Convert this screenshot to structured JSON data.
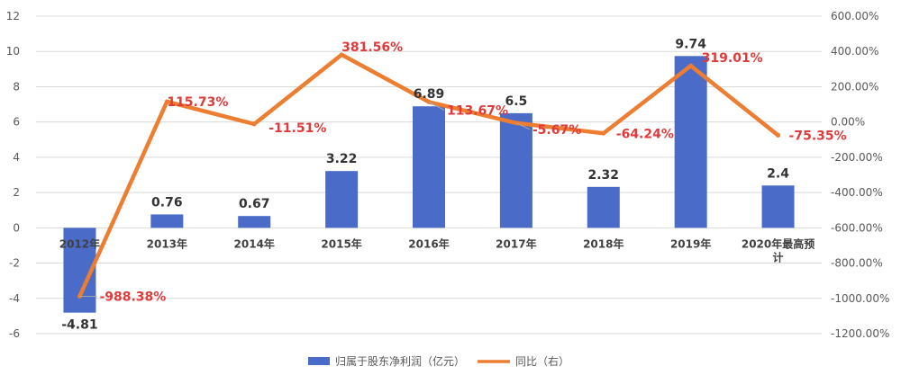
{
  "chart_data": {
    "type": "bar",
    "categories": [
      "2012年",
      "2013年",
      "2014年",
      "2015年",
      "2016年",
      "2017年",
      "2018年",
      "2019年",
      "2020年最高预计"
    ],
    "category_lines": [
      [
        "2012年"
      ],
      [
        "2013年"
      ],
      [
        "2014年"
      ],
      [
        "2015年"
      ],
      [
        "2016年"
      ],
      [
        "2017年"
      ],
      [
        "2018年"
      ],
      [
        "2019年"
      ],
      [
        "2020年最高预",
        "计"
      ]
    ],
    "series": [
      {
        "name": "归属于股东净利润（亿元）",
        "type": "bar",
        "axis": "left",
        "values": [
          -4.81,
          0.76,
          0.67,
          3.22,
          6.89,
          6.5,
          2.32,
          9.74,
          2.4
        ],
        "labels": [
          "-4.81",
          "0.76",
          "0.67",
          "3.22",
          "6.89",
          "6.5",
          "2.32",
          "9.74",
          "2.4"
        ]
      },
      {
        "name": "同比（右）",
        "type": "line",
        "axis": "right",
        "values": [
          -988.38,
          115.73,
          -11.51,
          381.56,
          113.67,
          -5.67,
          -64.24,
          319.01,
          -75.35
        ],
        "labels": [
          "-988.38%",
          "115.73%",
          "-11.51%",
          "381.56%",
          "113.67%",
          "-5.67%",
          "-64.24%",
          "319.01%",
          "-75.35%"
        ]
      }
    ],
    "y_left": {
      "min": -6,
      "max": 12,
      "ticks": [
        "-6",
        "-4",
        "-2",
        "0",
        "2",
        "4",
        "6",
        "8",
        "10",
        "12"
      ]
    },
    "y_right": {
      "min": -1200,
      "max": 600,
      "ticks": [
        "-1200.00%",
        "-1000.00%",
        "-800.00%",
        "-600.00%",
        "-400.00%",
        "-200.00%",
        "0.00%",
        "200.00%",
        "400.00%",
        "600.00%"
      ]
    },
    "grid": true,
    "legend_position": "bottom",
    "colors": {
      "bar": "#4a6cc8",
      "line": "#ed7d31",
      "pct_label": "#e03a3a"
    }
  }
}
